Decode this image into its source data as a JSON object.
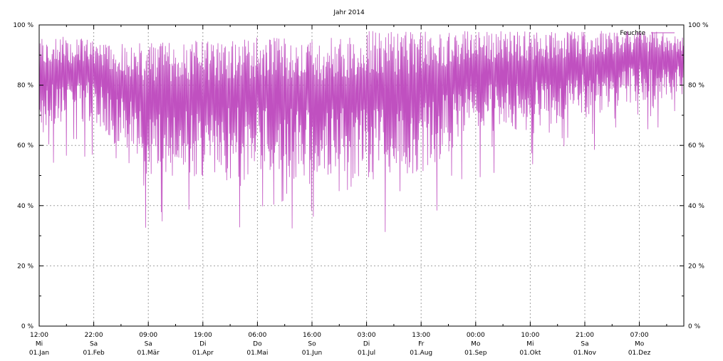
{
  "chart_data": {
    "type": "line",
    "title": "Jahr 2014",
    "xlabel": "",
    "ylabel": "",
    "ylim": [
      0,
      100
    ],
    "y_ticks": [
      "0 %",
      "20 %",
      "40 %",
      "60 %",
      "80 %",
      "100 %"
    ],
    "y2_ticks": [
      "0 %",
      "20 %",
      "40 %",
      "60 %",
      "80 %",
      "100 %"
    ],
    "grid": true,
    "legend": "top-right",
    "x_ticks": [
      {
        "time": "12:00",
        "weekday": "Mi",
        "date": "01.Jan"
      },
      {
        "time": "22:00",
        "weekday": "Sa",
        "date": "01.Feb"
      },
      {
        "time": "09:00",
        "weekday": "Sa",
        "date": "01.Mär"
      },
      {
        "time": "19:00",
        "weekday": "Di",
        "date": "01.Apr"
      },
      {
        "time": "06:00",
        "weekday": "Do",
        "date": "01.Mai"
      },
      {
        "time": "16:00",
        "weekday": "So",
        "date": "01.Jun"
      },
      {
        "time": "03:00",
        "weekday": "Di",
        "date": "01.Jul"
      },
      {
        "time": "13:00",
        "weekday": "Fr",
        "date": "01.Aug"
      },
      {
        "time": "00:00",
        "weekday": "Mo",
        "date": "01.Sep"
      },
      {
        "time": "10:00",
        "weekday": "Mi",
        "date": "01.Okt"
      },
      {
        "time": "21:00",
        "weekday": "Sa",
        "date": "01.Nov"
      },
      {
        "time": "07:00",
        "weekday": "Mo",
        "date": "01.Dez"
      }
    ],
    "series": [
      {
        "name": "Feuchte",
        "color": "#c050c0",
        "monthly_envelope": {
          "months": [
            "Jan",
            "Feb",
            "Mär",
            "Apr",
            "Mai",
            "Jun",
            "Jul",
            "Aug",
            "Sep",
            "Okt",
            "Nov",
            "Dez"
          ],
          "max": [
            97,
            95,
            94,
            95,
            96,
            95,
            98,
            98,
            98,
            98,
            98,
            98
          ],
          "min": [
            50,
            57,
            30,
            29,
            30,
            29,
            26,
            31,
            48,
            50,
            57,
            65
          ]
        }
      }
    ]
  }
}
